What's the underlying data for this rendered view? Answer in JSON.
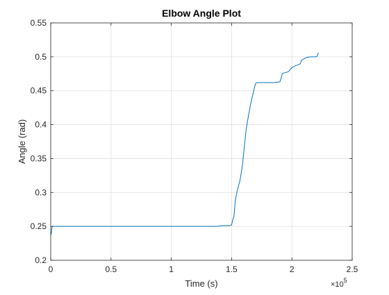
{
  "chart_data": {
    "type": "line",
    "title": "Elbow Angle Plot",
    "xlabel": "Time (s)",
    "ylabel": "Angle (rad)",
    "x_exponent_base": "×10",
    "x_exponent_power": "5",
    "xlim": [
      0,
      2.5
    ],
    "ylim": [
      0.2,
      0.55
    ],
    "xticks": [
      0,
      0.5,
      1,
      1.5,
      2,
      2.5
    ],
    "xtick_labels": [
      "0",
      "0.5",
      "1",
      "1.5",
      "2",
      "2.5"
    ],
    "yticks": [
      0.2,
      0.25,
      0.3,
      0.35,
      0.4,
      0.45,
      0.5,
      0.55
    ],
    "ytick_labels": [
      "0.2",
      "0.25",
      "0.3",
      "0.35",
      "0.4",
      "0.45",
      "0.5",
      "0.55"
    ],
    "grid": true,
    "line_color": "#0072bd",
    "series": [
      {
        "x": [
          0,
          0.005,
          0.01,
          0.015,
          0.03,
          0.1,
          0.5,
          1.0,
          1.3,
          1.38,
          1.42,
          1.48,
          1.5,
          1.51,
          1.52,
          1.53,
          1.54,
          1.55,
          1.57,
          1.59,
          1.6,
          1.61,
          1.62,
          1.63,
          1.64,
          1.65,
          1.66,
          1.67,
          1.68,
          1.69,
          1.7,
          1.71,
          1.72,
          1.73,
          1.74,
          1.75,
          1.8,
          1.85,
          1.9,
          1.91,
          1.92,
          1.93,
          1.95,
          1.97,
          1.98,
          2.0,
          2.01,
          2.03,
          2.05,
          2.07,
          2.08,
          2.1,
          2.12,
          2.15,
          2.18,
          2.2,
          2.21,
          2.22
        ],
        "y": [
          0.237,
          0.24,
          0.248,
          0.25,
          0.25,
          0.25,
          0.25,
          0.25,
          0.25,
          0.25,
          0.251,
          0.251,
          0.252,
          0.26,
          0.265,
          0.287,
          0.297,
          0.305,
          0.318,
          0.34,
          0.358,
          0.375,
          0.392,
          0.403,
          0.413,
          0.423,
          0.432,
          0.44,
          0.447,
          0.455,
          0.461,
          0.462,
          0.462,
          0.462,
          0.462,
          0.462,
          0.462,
          0.462,
          0.463,
          0.468,
          0.475,
          0.476,
          0.477,
          0.478,
          0.48,
          0.484,
          0.485,
          0.487,
          0.488,
          0.49,
          0.495,
          0.497,
          0.499,
          0.5,
          0.5,
          0.5,
          0.501,
          0.506
        ]
      }
    ]
  }
}
